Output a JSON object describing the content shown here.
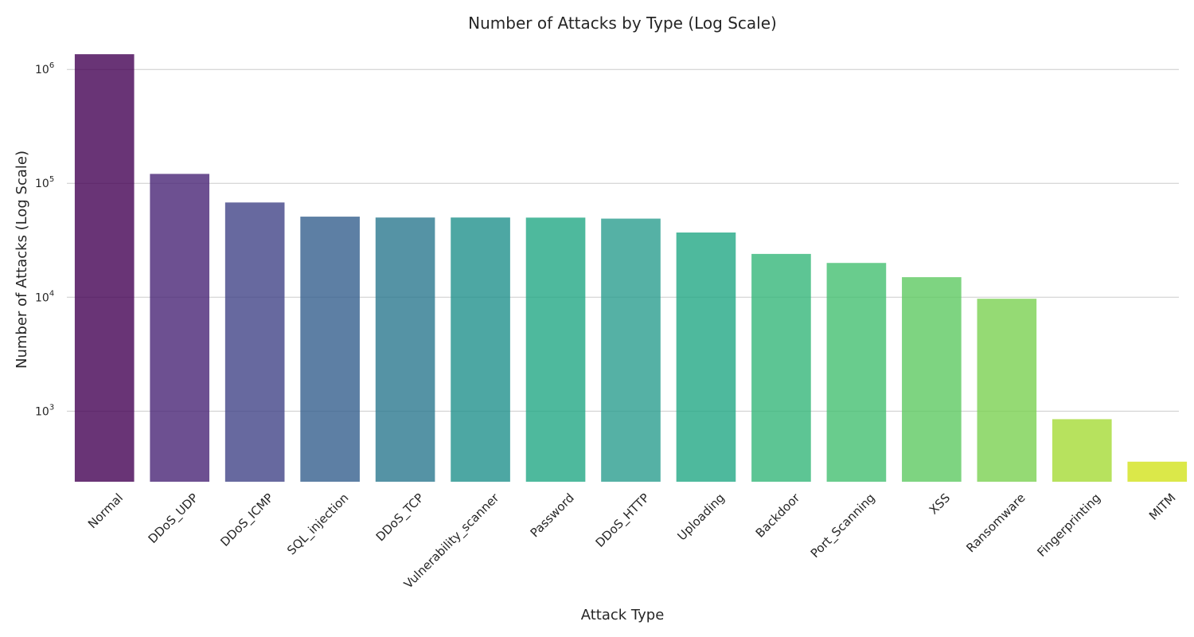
{
  "chart_data": {
    "type": "bar",
    "title": "Number of Attacks by Type (Log Scale)",
    "xlabel": "Attack Type",
    "ylabel": "Number of Attacks (Log Scale)",
    "yscale": "log",
    "ylim": [
      240,
      1500000
    ],
    "yticks": [
      1000,
      10000,
      100000,
      1000000
    ],
    "ytick_labels": [
      {
        "base": "10",
        "exp": "3"
      },
      {
        "base": "10",
        "exp": "4"
      },
      {
        "base": "10",
        "exp": "5"
      },
      {
        "base": "10",
        "exp": "6"
      }
    ],
    "grid": true,
    "categories": [
      "Normal",
      "DDoS_UDP",
      "DDoS_ICMP",
      "SQL_injection",
      "DDoS_TCP",
      "Vulnerability_scanner",
      "Password",
      "DDoS_HTTP",
      "Uploading",
      "Backdoor",
      "Port_Scanning",
      "XSS",
      "Ransomware",
      "Fingerprinting",
      "MITM"
    ],
    "values": [
      1360000,
      121000,
      67900,
      51000,
      50100,
      50100,
      50000,
      49000,
      37000,
      24000,
      20000,
      15000,
      9700,
      850,
      360
    ],
    "colors": [
      "#440154",
      "#482475",
      "#414487",
      "#355f8d",
      "#2a788e",
      "#21918c",
      "#22a884",
      "#2a9d8f",
      "#22a884",
      "#35b779",
      "#44bf70",
      "#5ec962",
      "#7ad151",
      "#a5db36",
      "#d2e21b"
    ]
  }
}
